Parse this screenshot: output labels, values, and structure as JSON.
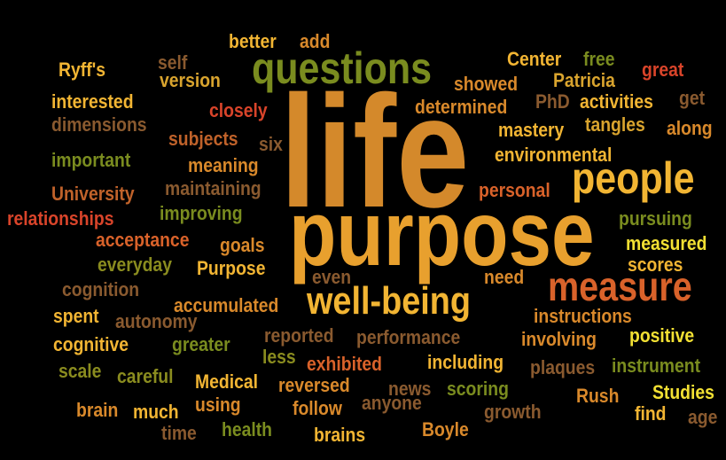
{
  "words": [
    {
      "text": "life",
      "color": "#D4892B"
    },
    {
      "text": "purpose",
      "color": "#E8A02E"
    },
    {
      "text": "questions",
      "color": "#7A8C1F"
    },
    {
      "text": "people",
      "color": "#F2B533"
    },
    {
      "text": "measure",
      "color": "#D9622A"
    },
    {
      "text": "well-being",
      "color": "#F2B533"
    },
    {
      "text": "better",
      "color": "#F2B533"
    },
    {
      "text": "add",
      "color": "#D9892B"
    },
    {
      "text": "Ryff's",
      "color": "#F2B533"
    },
    {
      "text": "self",
      "color": "#8A5A2F"
    },
    {
      "text": "version",
      "color": "#D9A42E"
    },
    {
      "text": "interested",
      "color": "#F2B533"
    },
    {
      "text": "closely",
      "color": "#D9442A"
    },
    {
      "text": "dimensions",
      "color": "#8A5A2F"
    },
    {
      "text": "subjects",
      "color": "#C0622A"
    },
    {
      "text": "six",
      "color": "#8A5A2F"
    },
    {
      "text": "important",
      "color": "#7A8C1F"
    },
    {
      "text": "meaning",
      "color": "#D9892B"
    },
    {
      "text": "University",
      "color": "#C0622A"
    },
    {
      "text": "maintaining",
      "color": "#8A5A2F"
    },
    {
      "text": "relationships",
      "color": "#D9442A"
    },
    {
      "text": "improving",
      "color": "#7A8C1F"
    },
    {
      "text": "acceptance",
      "color": "#D9622A"
    },
    {
      "text": "goals",
      "color": "#D9892B"
    },
    {
      "text": "everyday",
      "color": "#8A8C1F"
    },
    {
      "text": "Purpose",
      "color": "#F2B533"
    },
    {
      "text": "cognition",
      "color": "#8A5A2F"
    },
    {
      "text": "spent",
      "color": "#F2B533"
    },
    {
      "text": "autonomy",
      "color": "#8A5A2F"
    },
    {
      "text": "accumulated",
      "color": "#D9892B"
    },
    {
      "text": "cognitive",
      "color": "#F2B533"
    },
    {
      "text": "greater",
      "color": "#7A8C1F"
    },
    {
      "text": "scale",
      "color": "#8A8C1F"
    },
    {
      "text": "careful",
      "color": "#8A8C1F"
    },
    {
      "text": "Medical",
      "color": "#F2B533"
    },
    {
      "text": "brain",
      "color": "#D9892B"
    },
    {
      "text": "much",
      "color": "#F2B533"
    },
    {
      "text": "using",
      "color": "#D9892B"
    },
    {
      "text": "time",
      "color": "#8A5A2F"
    },
    {
      "text": "health",
      "color": "#7A8C1F"
    },
    {
      "text": "brains",
      "color": "#F2B533"
    },
    {
      "text": "Center",
      "color": "#F2B533"
    },
    {
      "text": "free",
      "color": "#7A8C1F"
    },
    {
      "text": "showed",
      "color": "#D9892B"
    },
    {
      "text": "Patricia",
      "color": "#D9A42E"
    },
    {
      "text": "great",
      "color": "#D9442A"
    },
    {
      "text": "determined",
      "color": "#D9892B"
    },
    {
      "text": "PhD",
      "color": "#8A5A2F"
    },
    {
      "text": "activities",
      "color": "#F2B533"
    },
    {
      "text": "get",
      "color": "#8A5A2F"
    },
    {
      "text": "mastery",
      "color": "#F2B533"
    },
    {
      "text": "tangles",
      "color": "#D9A42E"
    },
    {
      "text": "along",
      "color": "#D9892B"
    },
    {
      "text": "environmental",
      "color": "#F2B533"
    },
    {
      "text": "personal",
      "color": "#D9622A"
    },
    {
      "text": "pursuing",
      "color": "#7A8C1F"
    },
    {
      "text": "measured",
      "color": "#F2E033"
    },
    {
      "text": "scores",
      "color": "#F2B533"
    },
    {
      "text": "even",
      "color": "#8A5A2F"
    },
    {
      "text": "need",
      "color": "#D9892B"
    },
    {
      "text": "instructions",
      "color": "#D9892B"
    },
    {
      "text": "reported",
      "color": "#8A5A2F"
    },
    {
      "text": "performance",
      "color": "#8A5A2F"
    },
    {
      "text": "involving",
      "color": "#D9892B"
    },
    {
      "text": "positive",
      "color": "#F2E033"
    },
    {
      "text": "less",
      "color": "#8A8C1F"
    },
    {
      "text": "exhibited",
      "color": "#D9622A"
    },
    {
      "text": "including",
      "color": "#F2B533"
    },
    {
      "text": "plaques",
      "color": "#8A5A2F"
    },
    {
      "text": "instrument",
      "color": "#7A8C1F"
    },
    {
      "text": "reversed",
      "color": "#D9892B"
    },
    {
      "text": "news",
      "color": "#8A5A2F"
    },
    {
      "text": "scoring",
      "color": "#7A8C1F"
    },
    {
      "text": "Rush",
      "color": "#D9892B"
    },
    {
      "text": "Studies",
      "color": "#F2E033"
    },
    {
      "text": "follow",
      "color": "#D9892B"
    },
    {
      "text": "anyone",
      "color": "#8A5A2F"
    },
    {
      "text": "growth",
      "color": "#8A5A2F"
    },
    {
      "text": "find",
      "color": "#F2B533"
    },
    {
      "text": "age",
      "color": "#8A5A2F"
    },
    {
      "text": "Boyle",
      "color": "#D9892B"
    }
  ]
}
